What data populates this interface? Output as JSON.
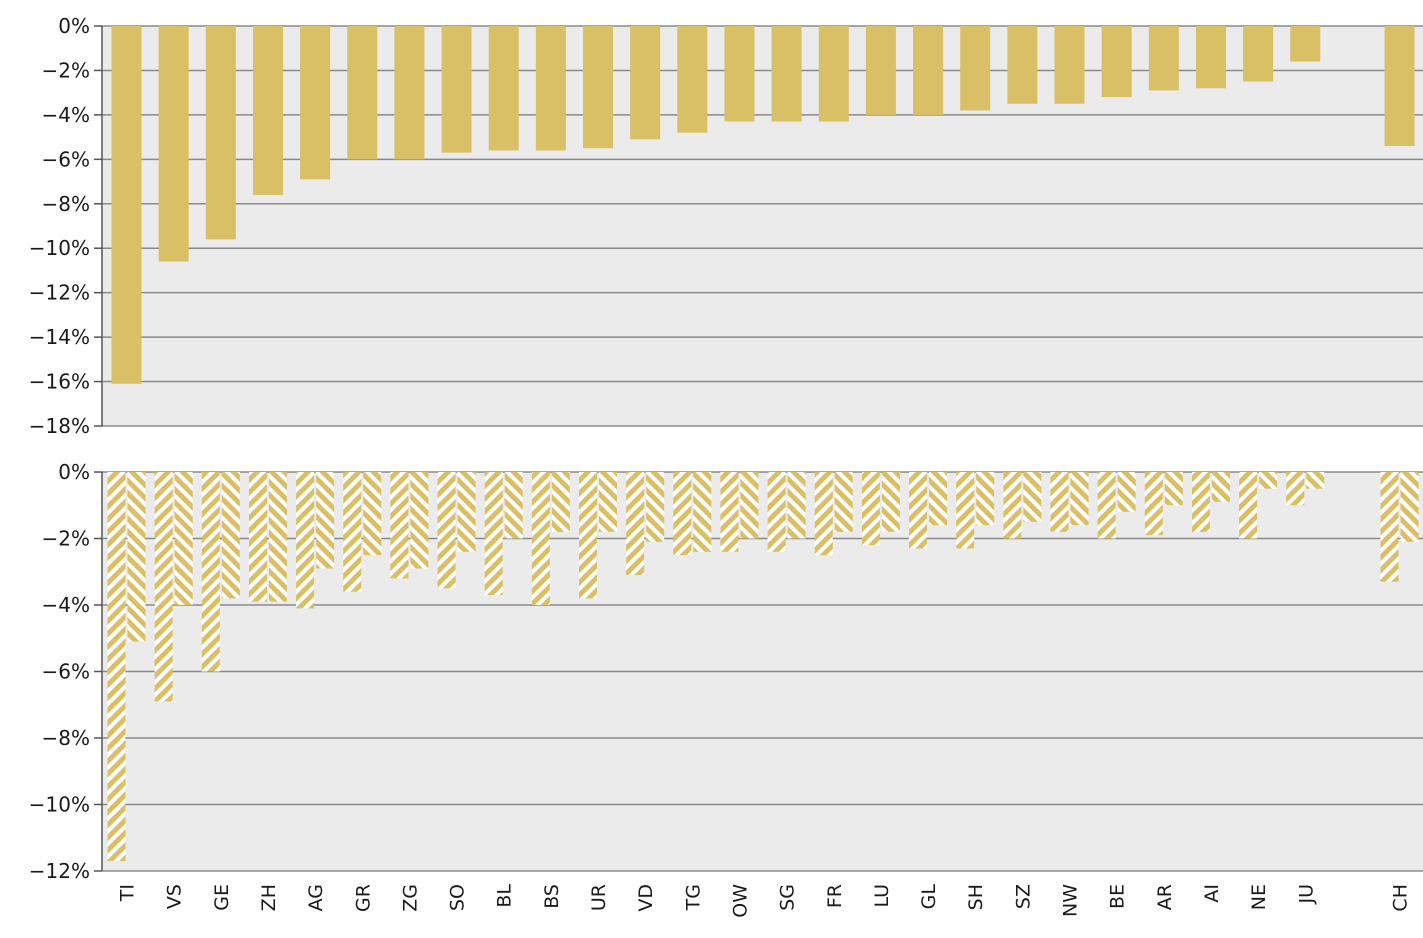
{
  "colors": {
    "bar": "#d9bf66",
    "plot_bg": "#ebebeb",
    "grid": "#8a8a8a",
    "axis": "#555555",
    "hatch_bg": "#ffffff"
  },
  "chart_data": [
    {
      "type": "bar",
      "categories": [
        "TI",
        "VS",
        "GE",
        "ZH",
        "AG",
        "GR",
        "ZG",
        "SO",
        "BL",
        "BS",
        "UR",
        "VD",
        "TG",
        "OW",
        "SG",
        "FR",
        "LU",
        "GL",
        "SH",
        "SZ",
        "NW",
        "BE",
        "AR",
        "AI",
        "NE",
        "JU",
        "",
        "CH"
      ],
      "values": [
        -16.1,
        -10.6,
        -9.6,
        -7.6,
        -6.9,
        -6.0,
        -6.0,
        -5.7,
        -5.6,
        -5.6,
        -5.5,
        -5.1,
        -4.8,
        -4.3,
        -4.3,
        -4.3,
        -4.0,
        -4.0,
        -3.8,
        -3.5,
        -3.5,
        -3.2,
        -2.9,
        -2.8,
        -2.5,
        -1.6,
        null,
        -5.4
      ],
      "ylim": [
        -18,
        0
      ],
      "yticks": [
        0,
        -2,
        -4,
        -6,
        -8,
        -10,
        -12,
        -14,
        -16,
        -18
      ],
      "ytick_labels": [
        "0%",
        "−2%",
        "−4%",
        "−6%",
        "−8%",
        "−10%",
        "−12%",
        "−14%",
        "−16%",
        "−18%"
      ],
      "grid": true
    },
    {
      "type": "bar",
      "categories": [
        "TI",
        "VS",
        "GE",
        "ZH",
        "AG",
        "GR",
        "ZG",
        "SO",
        "BL",
        "BS",
        "UR",
        "VD",
        "TG",
        "OW",
        "SG",
        "FR",
        "LU",
        "GL",
        "SH",
        "SZ",
        "NW",
        "BE",
        "AR",
        "AI",
        "NE",
        "JU",
        "",
        "CH"
      ],
      "series": [
        {
          "pattern": "hatch-left",
          "values": [
            -11.7,
            -6.9,
            -6.0,
            -3.9,
            -4.1,
            -3.6,
            -3.2,
            -3.5,
            -3.7,
            -4.0,
            -3.8,
            -3.1,
            -2.5,
            -2.4,
            -2.4,
            -2.5,
            -2.2,
            -2.3,
            -2.3,
            -2.0,
            -1.8,
            -2.0,
            -1.9,
            -1.8,
            -2.0,
            -1.0,
            null,
            -3.3
          ]
        },
        {
          "pattern": "hatch-right",
          "values": [
            -5.1,
            -4.0,
            -3.8,
            -3.9,
            -2.9,
            -2.5,
            -2.9,
            -2.4,
            -2.0,
            -1.8,
            -1.8,
            -2.1,
            -2.4,
            -2.0,
            -2.0,
            -1.8,
            -1.8,
            -1.6,
            -1.6,
            -1.5,
            -1.6,
            -1.2,
            -1.0,
            -0.9,
            -0.5,
            -0.5,
            null,
            -2.1
          ]
        }
      ],
      "ylim": [
        -12,
        0
      ],
      "yticks": [
        0,
        -2,
        -4,
        -6,
        -8,
        -10,
        -12
      ],
      "ytick_labels": [
        "0%",
        "−2%",
        "−4%",
        "−6%",
        "−8%",
        "−10%",
        "−12%"
      ],
      "grid": true
    }
  ]
}
